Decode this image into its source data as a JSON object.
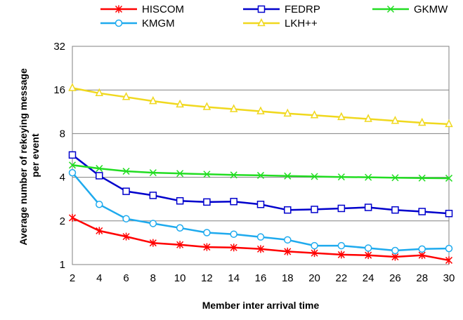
{
  "chart_data": {
    "type": "line",
    "title": "",
    "xlabel": "Member inter arrival time",
    "ylabel": "Average number of rekeying message per event",
    "ylabel_lines": [
      "Average number of rekeying message",
      "per event"
    ],
    "yscale": "log2",
    "ylim": [
      1,
      32
    ],
    "yticks": [
      1,
      2,
      4,
      8,
      16,
      32
    ],
    "yticklabels": [
      "1",
      "2",
      "4",
      "8",
      "16",
      "32"
    ],
    "x": [
      2,
      4,
      6,
      8,
      10,
      12,
      14,
      16,
      18,
      20,
      22,
      24,
      26,
      28,
      30
    ],
    "xticklabels": [
      "2",
      "4",
      "6",
      "8",
      "10",
      "12",
      "14",
      "16",
      "18",
      "20",
      "22",
      "24",
      "26",
      "28",
      "30"
    ],
    "grid": true,
    "legend_position": "top",
    "series": [
      {
        "name": "HISCOM",
        "color": "#ff0000",
        "marker": "asterisk",
        "values": [
          2.1,
          1.71,
          1.56,
          1.41,
          1.37,
          1.32,
          1.31,
          1.28,
          1.23,
          1.2,
          1.17,
          1.16,
          1.13,
          1.16,
          1.07
        ]
      },
      {
        "name": "FEDRP",
        "color": "#0000cc",
        "marker": "square",
        "values": [
          5.7,
          4.1,
          3.2,
          3.0,
          2.75,
          2.7,
          2.72,
          2.6,
          2.38,
          2.4,
          2.44,
          2.48,
          2.38,
          2.32,
          2.25
        ]
      },
      {
        "name": "GKMW",
        "color": "#22dd22",
        "marker": "x",
        "values": [
          4.85,
          4.6,
          4.4,
          4.3,
          4.25,
          4.2,
          4.15,
          4.12,
          4.08,
          4.05,
          4.02,
          4.0,
          3.97,
          3.95,
          3.94
        ]
      },
      {
        "name": "KMGM",
        "color": "#1eaaee",
        "marker": "circle",
        "values": [
          4.3,
          2.6,
          2.07,
          1.92,
          1.79,
          1.66,
          1.62,
          1.55,
          1.48,
          1.35,
          1.35,
          1.3,
          1.25,
          1.28,
          1.29
        ]
      },
      {
        "name": "LKH++",
        "color": "#f0d81e",
        "marker": "triangle",
        "values": [
          16.5,
          15.2,
          14.3,
          13.4,
          12.7,
          12.2,
          11.8,
          11.4,
          11.0,
          10.7,
          10.4,
          10.1,
          9.8,
          9.5,
          9.3
        ]
      }
    ]
  }
}
